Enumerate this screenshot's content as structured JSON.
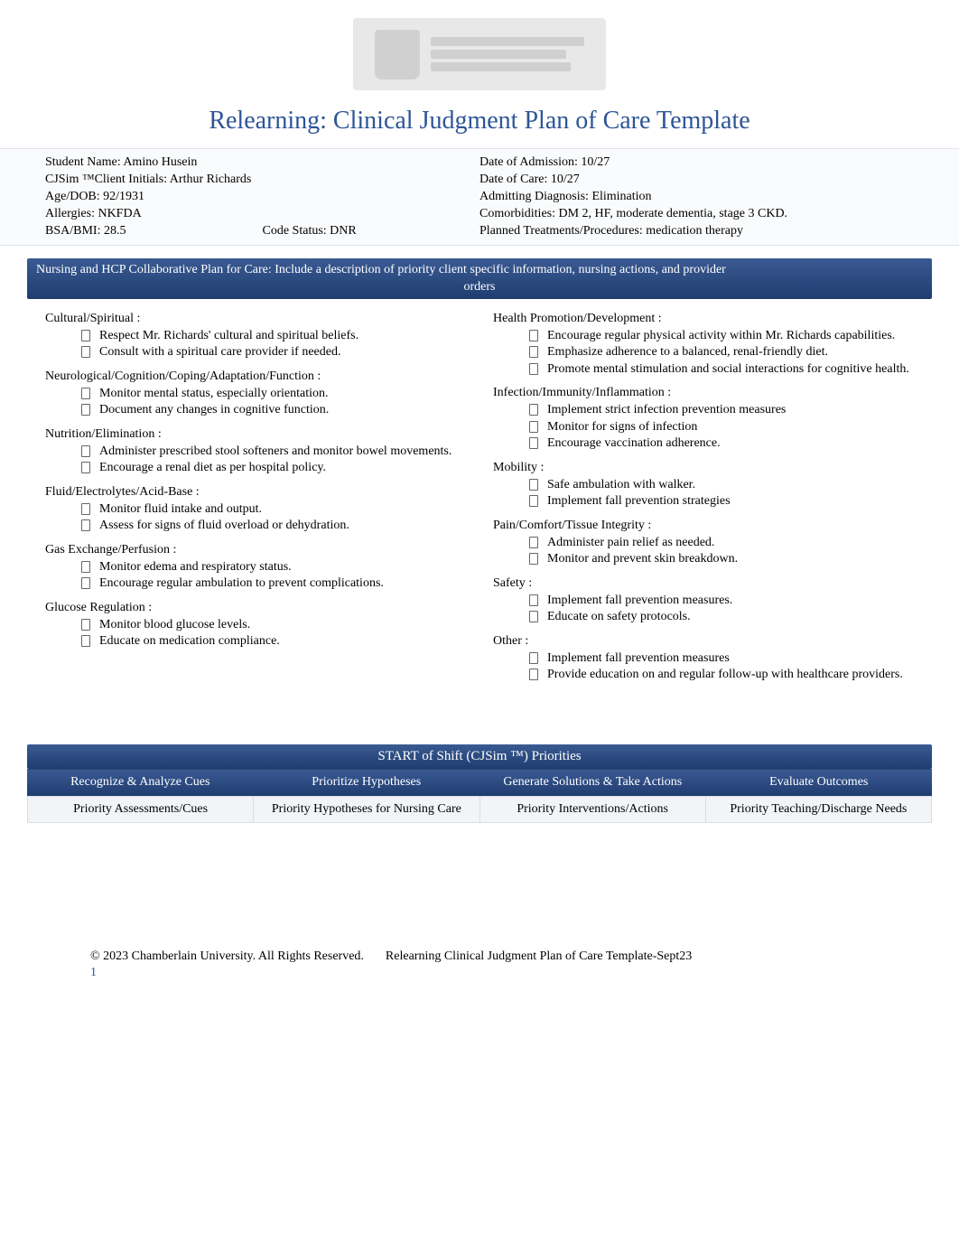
{
  "colors": {
    "title": "#2d5596",
    "bar_bg_top": "#3a5a92",
    "bar_bg_bottom": "#1f3d70",
    "bar_text": "#ffffff",
    "sub_bg": "#f2f4f7",
    "logo_bg": "#e8e8e8"
  },
  "title": "Relearning: Clinical Judgment Plan of Care Template",
  "info_left": {
    "student": "Student Name: Amino Husein",
    "client": "CJSim ™Client Initials: Arthur Richards",
    "age": "Age/DOB: 92/1931",
    "allergies": "Allergies: NKFDA",
    "bsa": "BSA/BMI: 28.5",
    "code": "Code Status: DNR"
  },
  "info_right": {
    "doa": "Date of Admission: 10/27",
    "doc": "Date of Care: 10/27",
    "diag": "Admitting Diagnosis: Elimination",
    "comorb": "Comorbidities: DM 2, HF, moderate dementia, stage 3 CKD.",
    "treat": "Planned Treatments/Procedures: medication therapy"
  },
  "nursing_header": {
    "line1": "Nursing and HCP Collaborative Plan for Care: Include a description of priority client specific information, nursing actions, and provider",
    "line2": "orders"
  },
  "left_sections": [
    {
      "head": "Cultural/Spiritual      :",
      "items": [
        "Respect Mr. Richards' cultural and spiritual beliefs.",
        "Consult with a spiritual care provider if needed."
      ]
    },
    {
      "head": "Neurological/Cognition/Coping/Adaptation/Function          :",
      "items": [
        "Monitor mental status, especially orientation.",
        "Document any changes in cognitive function."
      ]
    },
    {
      "head": "Nutrition/Elimination      :",
      "items": [
        "Administer prescribed stool softeners and monitor bowel movements.",
        "Encourage a renal diet as per hospital policy."
      ]
    },
    {
      "head": "Fluid/Electrolytes/Acid-Base        :",
      "items": [
        "Monitor fluid intake and output.",
        "Assess for signs of fluid overload or dehydration."
      ]
    },
    {
      "head": "Gas Exchange/Perfusion       :",
      "items": [
        "Monitor edema and respiratory status.",
        "Encourage regular ambulation to prevent complications."
      ]
    },
    {
      "head": "Glucose Regulation      :",
      "items": [
        "Monitor blood glucose levels.",
        "Educate on medication compliance."
      ]
    }
  ],
  "right_sections": [
    {
      "head": "Health Promotion/Development           :",
      "items": [
        "Encourage regular physical activity within Mr. Richards capabilities.",
        "Emphasize adherence to a balanced, renal-friendly diet.",
        "Promote mental stimulation and social interactions for cognitive health."
      ]
    },
    {
      "head": "Infection/Immunity/Inflammation       :",
      "items": [
        "Implement strict infection prevention measures",
        "Monitor for signs of infection",
        "Encourage vaccination adherence."
      ]
    },
    {
      "head": "Mobility  :",
      "items": [
        "Safe ambulation with walker.",
        "Implement fall prevention strategies"
      ]
    },
    {
      "head": "Pain/Comfort/Tissue Integrity         :",
      "items": [
        "Administer pain relief as needed.",
        "Monitor and prevent skin breakdown."
      ]
    },
    {
      "head": "Safety  :",
      "items": [
        "Implement fall prevention measures.",
        "Educate on safety protocols."
      ]
    },
    {
      "head": "Other  :",
      "items": [
        "Implement fall prevention measures",
        "Provide education on and regular follow-up with healthcare providers."
      ]
    }
  ],
  "priorities": {
    "top": "START   of Shift (CJSim   ™) Priorities",
    "mid": [
      "Recognize & Analyze Cues",
      "Prioritize Hypotheses",
      "Generate Solutions & Take Actions",
      "Evaluate Outcomes"
    ],
    "sub": [
      "Priority Assessments/Cues",
      "Priority Hypotheses for Nursing Care",
      "Priority Interventions/Actions",
      "Priority Teaching/Discharge Needs"
    ]
  },
  "footer": {
    "copyright": "© 2023 Chamberlain University. All Rights Reserved.",
    "doc": "Relearning Clinical Judgment Plan of Care Template-Sept23",
    "page": "1"
  }
}
